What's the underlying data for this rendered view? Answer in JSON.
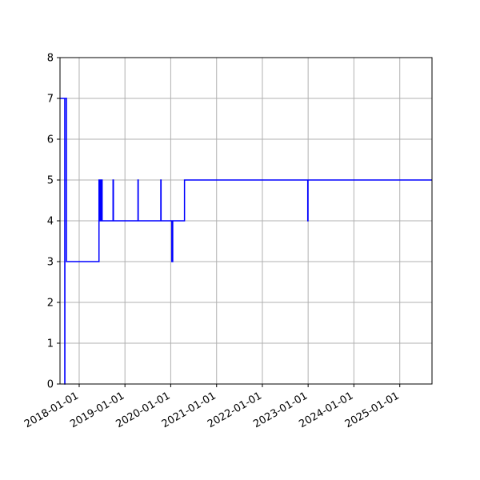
{
  "chart_data": {
    "type": "line",
    "title": "",
    "xlabel": "",
    "ylabel": "",
    "x_type": "date",
    "xlim": [
      "2017-08-01",
      "2025-09-15"
    ],
    "ylim": [
      0,
      8
    ],
    "grid": true,
    "legend": "none",
    "colors": {
      "line": "#0000ff",
      "grid": "#b0b0b0",
      "axis": "#000000"
    },
    "x_ticks": [
      "2018-01-01",
      "2019-01-01",
      "2020-01-01",
      "2021-01-01",
      "2022-01-01",
      "2023-01-01",
      "2024-01-01",
      "2025-01-01"
    ],
    "y_ticks": [
      0,
      1,
      2,
      3,
      4,
      5,
      6,
      7,
      8
    ],
    "series": [
      {
        "step": "post",
        "points": [
          [
            "2017-08-01",
            7
          ],
          [
            "2017-09-08",
            0
          ],
          [
            "2017-09-09",
            7
          ],
          [
            "2017-09-22",
            3
          ],
          [
            "2018-06-08",
            5
          ],
          [
            "2018-06-12",
            4
          ],
          [
            "2018-06-16",
            5
          ],
          [
            "2018-06-20",
            4
          ],
          [
            "2018-06-23",
            5
          ],
          [
            "2018-06-27",
            4
          ],
          [
            "2018-06-29",
            5
          ],
          [
            "2018-07-03",
            4
          ],
          [
            "2018-09-28",
            5
          ],
          [
            "2018-10-01",
            4
          ],
          [
            "2019-04-15",
            5
          ],
          [
            "2019-04-17",
            4
          ],
          [
            "2019-10-14",
            5
          ],
          [
            "2019-10-16",
            4
          ],
          [
            "2020-01-10",
            3
          ],
          [
            "2020-01-17",
            4
          ],
          [
            "2020-04-20",
            5
          ],
          [
            "2022-12-29",
            4
          ],
          [
            "2022-12-31",
            5
          ],
          [
            "2025-09-15",
            5
          ]
        ]
      }
    ]
  }
}
